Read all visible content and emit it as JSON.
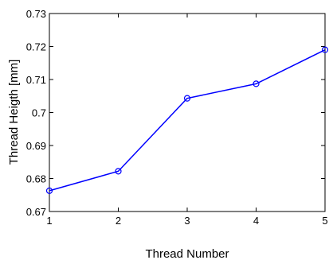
{
  "chart_data": {
    "type": "line",
    "title": "",
    "xlabel": "Thread Number",
    "ylabel": "Thread Heigth [mm]",
    "x": [
      1,
      2,
      3,
      4,
      5
    ],
    "xlim": [
      1,
      5
    ],
    "ylim": [
      0.67,
      0.73
    ],
    "xticks": [
      1,
      2,
      3,
      4,
      5
    ],
    "yticks": [
      0.67,
      0.68,
      0.69,
      0.7,
      0.71,
      0.72,
      0.73
    ],
    "ytick_labels": [
      "0.67",
      "0.68",
      "0.69",
      "0.7",
      "0.71",
      "0.72",
      "0.73"
    ],
    "grid": false,
    "series": [
      {
        "values": [
          0.6763,
          0.6822,
          0.7043,
          0.7087,
          0.719
        ],
        "color": "#0000ff",
        "marker": "circle"
      }
    ]
  }
}
